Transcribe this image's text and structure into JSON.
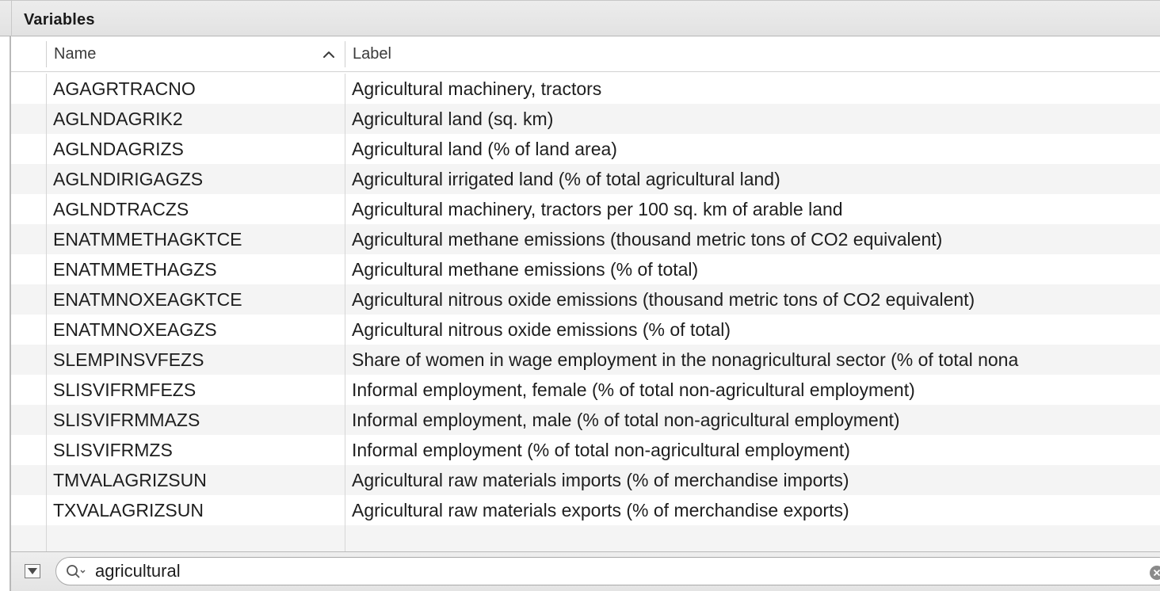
{
  "panel": {
    "title": "Variables"
  },
  "table": {
    "columns": {
      "name": "Name",
      "label": "Label"
    },
    "sort": {
      "column": "Name",
      "direction": "ascending",
      "icon": "chevron-up-icon"
    },
    "rows": [
      {
        "name": "AGAGRTRACNO",
        "label": "Agricultural machinery, tractors"
      },
      {
        "name": "AGLNDAGRIK2",
        "label": "Agricultural land (sq. km)"
      },
      {
        "name": "AGLNDAGRIZS",
        "label": "Agricultural land (% of land area)"
      },
      {
        "name": "AGLNDIRIGAGZS",
        "label": "Agricultural irrigated land (% of total agricultural land)"
      },
      {
        "name": "AGLNDTRACZS",
        "label": "Agricultural machinery, tractors per 100 sq. km of arable land"
      },
      {
        "name": "ENATMMETHAGKTCE",
        "label": "Agricultural methane emissions (thousand metric tons of CO2 equivalent)"
      },
      {
        "name": "ENATMMETHAGZS",
        "label": "Agricultural methane emissions (% of total)"
      },
      {
        "name": "ENATMNOXEAGKTCE",
        "label": "Agricultural nitrous oxide emissions (thousand metric tons of CO2 equivalent)"
      },
      {
        "name": "ENATMNOXEAGZS",
        "label": "Agricultural nitrous oxide emissions (% of total)"
      },
      {
        "name": "SLEMPINSVFEZS",
        "label": "Share of women in wage employment in the nonagricultural sector (% of total nona"
      },
      {
        "name": "SLISVIFRMFEZS",
        "label": "Informal employment, female (% of total non-agricultural employment)"
      },
      {
        "name": "SLISVIFRMMAZS",
        "label": "Informal employment, male (% of total non-agricultural employment)"
      },
      {
        "name": "SLISVIFRMZS",
        "label": "Informal employment (% of total non-agricultural employment)"
      },
      {
        "name": "TMVALAGRIZSUN",
        "label": "Agricultural raw materials imports (% of merchandise imports)"
      },
      {
        "name": "TXVALAGRIZSUN",
        "label": "Agricultural raw materials exports (% of merchandise exports)"
      }
    ]
  },
  "search": {
    "value": "agricultural",
    "icon": "search-icon",
    "clear_icon": "clear-icon"
  },
  "footer": {
    "menu_icon": "disclosure-triangle-icon"
  },
  "colors": {
    "row_alt": "#f4f4f4",
    "header_bg": "#e6e6e6",
    "text": "#1e1e1e"
  }
}
